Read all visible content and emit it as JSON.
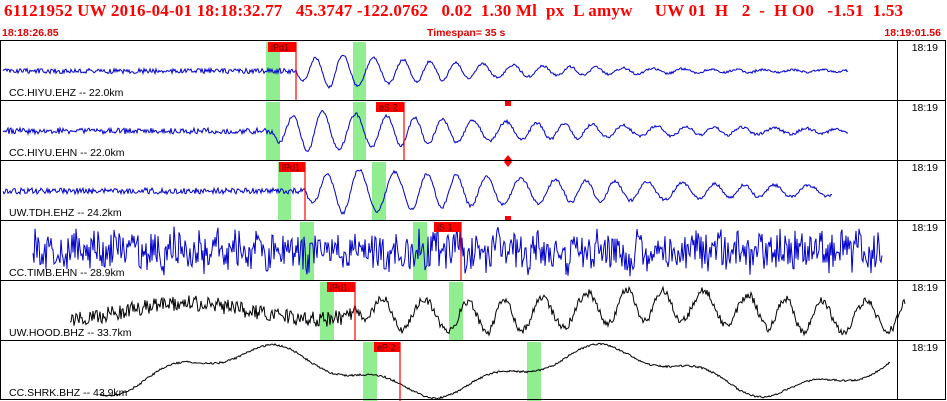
{
  "header": {
    "title": "61121952 UW 2016-04-01 18:18:32.77   45.3747 -122.0762   0.02  1.30 Ml  px  L amyw     UW 01  H   2  -  H O0   -1.51  1.53",
    "start_time": "18:18:26.85",
    "timespan": "Timespan=  35 s",
    "end_time": "18:19:01.56"
  },
  "colors": {
    "trace_blue": "#0000cc",
    "trace_black": "#000000",
    "pick_red": "#ff0000",
    "window_green": "#90ee90",
    "header_red": "#ff0000"
  },
  "panels": [
    {
      "label": "CC.HIYU.EHZ -- 22.0km",
      "tick": "18:19",
      "color": "blue",
      "picks": [
        {
          "label": "iPd1"
        }
      ]
    },
    {
      "label": "CC.HIYU.EHN -- 22.0km",
      "tick": "18:19",
      "color": "blue",
      "picks": [
        {
          "label": "eS 2"
        }
      ]
    },
    {
      "label": "UW.TDH.EHZ -- 24.2km",
      "tick": "18:19",
      "color": "blue",
      "picks": [
        {
          "label": "iPd1"
        }
      ]
    },
    {
      "label": "CC.TIMB.EHN -- 28.9km",
      "tick": "18:19",
      "color": "blue",
      "picks": [
        {
          "label": "iS 1"
        }
      ]
    },
    {
      "label": "UW.HOOD.BHZ -- 33.7km",
      "tick": "18:19",
      "color": "black",
      "picks": [
        {
          "label": "iPd1"
        }
      ]
    },
    {
      "label": "CC.SHRK.BHZ -- 43.9km",
      "tick": "18:19",
      "color": "black",
      "picks": [
        {
          "label": "eP 2"
        }
      ]
    }
  ]
}
